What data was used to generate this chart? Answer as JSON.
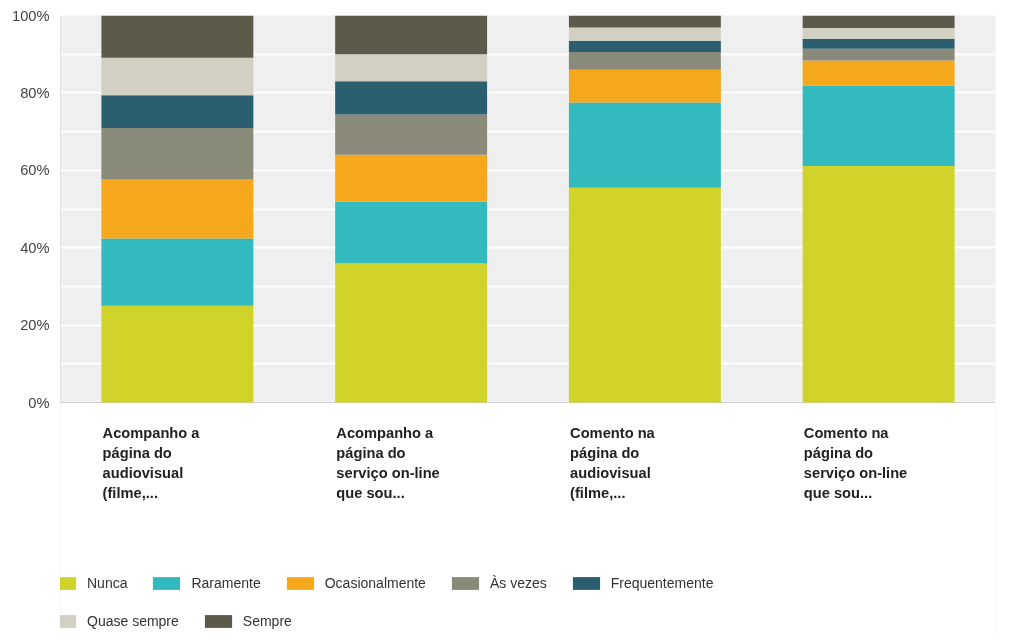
{
  "chart_data": {
    "type": "bar",
    "stacked": true,
    "categories": [
      "Acompanho a\npágina do\naudiovisual\n(filme,...",
      "Acompanho a\npágina do\nserviço on-line\nque sou...",
      "Comento na\npágina do\naudiovisual\n(filme,...",
      "Comento na\npágina do\nserviço on-line\nque sou..."
    ],
    "series": [
      {
        "name": "Nunca",
        "color": "#cfd32a",
        "values": [
          25.0,
          36.0,
          55.5,
          61.1
        ]
      },
      {
        "name": "Raramente",
        "color": "#33babf",
        "values": [
          17.4,
          15.9,
          22.0,
          20.8
        ]
      },
      {
        "name": "Ocasionalmente",
        "color": "#f6a81c",
        "values": [
          15.2,
          12.1,
          8.5,
          6.5
        ]
      },
      {
        "name": "Às vezes",
        "color": "#8a8a7a",
        "values": [
          13.3,
          10.4,
          4.6,
          3.0
        ]
      },
      {
        "name": "Frequentemente",
        "color": "#2b5e6e",
        "values": [
          8.5,
          8.6,
          2.9,
          2.6
        ]
      },
      {
        "name": "Quase sempre",
        "color": "#d2d0c2",
        "values": [
          9.7,
          7.0,
          3.4,
          2.8
        ]
      },
      {
        "name": "Sempre",
        "color": "#5c5a4a",
        "values": [
          10.9,
          10.0,
          3.1,
          3.2
        ]
      }
    ],
    "ylim": [
      0,
      100
    ],
    "yticks": [
      {
        "value": 0,
        "label": "0%"
      },
      {
        "value": 10,
        "label": null
      },
      {
        "value": 20,
        "label": "20%"
      },
      {
        "value": 30,
        "label": null
      },
      {
        "value": 40,
        "label": "40%"
      },
      {
        "value": 50,
        "label": null
      },
      {
        "value": 60,
        "label": "60%"
      },
      {
        "value": 70,
        "label": null
      },
      {
        "value": 80,
        "label": "80%"
      },
      {
        "value": 90,
        "label": null
      },
      {
        "value": 100,
        "label": "100%"
      }
    ],
    "grid": "y",
    "legend": "bottom"
  }
}
